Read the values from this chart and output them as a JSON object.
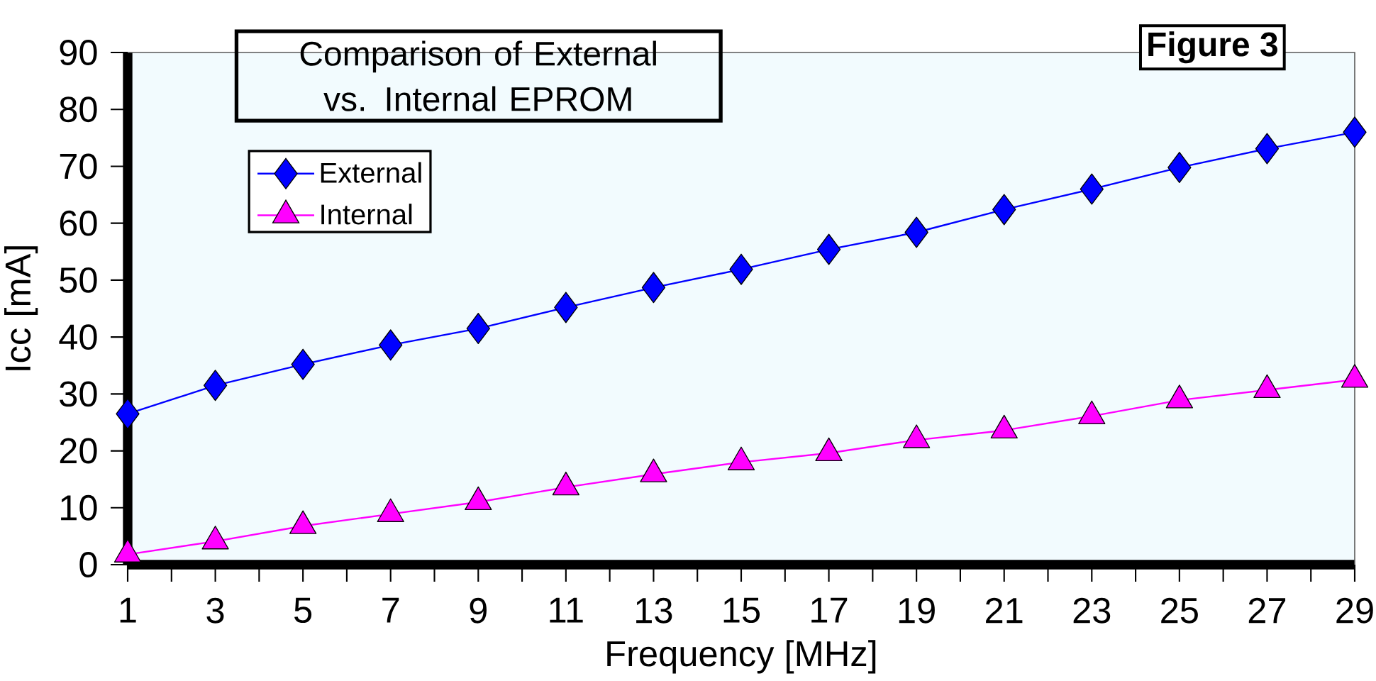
{
  "chart_data": {
    "type": "line",
    "title": "Comparison of External vs. Internal EPROM",
    "xlabel": "Frequency [MHz]",
    "ylabel": "Icc [mA]",
    "annotations": [
      "Figure 3"
    ],
    "x": [
      1,
      3,
      5,
      7,
      9,
      11,
      13,
      15,
      17,
      19,
      21,
      23,
      25,
      27,
      29
    ],
    "series": [
      {
        "name": "External",
        "color": "#0000ff",
        "marker": "diamond",
        "values": [
          26.5,
          31.5,
          35.2,
          38.6,
          41.5,
          45.2,
          48.7,
          51.9,
          55.4,
          58.4,
          62.4,
          66.0,
          69.8,
          73.1,
          76.0
        ]
      },
      {
        "name": "Internal",
        "color": "#ff00ff",
        "marker": "triangle",
        "values": [
          1.8,
          4.1,
          6.8,
          8.9,
          11.0,
          13.6,
          15.9,
          18.0,
          19.6,
          21.9,
          23.6,
          26.1,
          28.9,
          30.7,
          32.5
        ]
      }
    ],
    "xlim": [
      1,
      29
    ],
    "xticks": [
      1,
      {
        "value": 2,
        "label": null
      },
      3,
      {
        "value": 4,
        "label": null
      },
      5,
      {
        "value": 6,
        "label": null
      },
      7,
      {
        "value": 8,
        "label": null
      },
      9,
      {
        "value": 10,
        "label": null
      },
      11,
      {
        "value": 12,
        "label": null
      },
      13,
      {
        "value": 14,
        "label": null
      },
      15,
      {
        "value": 16,
        "label": null
      },
      17,
      {
        "value": 18,
        "label": null
      },
      19,
      {
        "value": 20,
        "label": null
      },
      21,
      {
        "value": 22,
        "label": null
      },
      23,
      {
        "value": 24,
        "label": null
      },
      25,
      {
        "value": 26,
        "label": null
      },
      27,
      {
        "value": 28,
        "label": null
      },
      29
    ],
    "ylim": [
      0,
      90
    ],
    "yticks": [
      0,
      10,
      20,
      30,
      40,
      50,
      60,
      70,
      80,
      90
    ],
    "legend": "top left",
    "line_style": "solid"
  }
}
